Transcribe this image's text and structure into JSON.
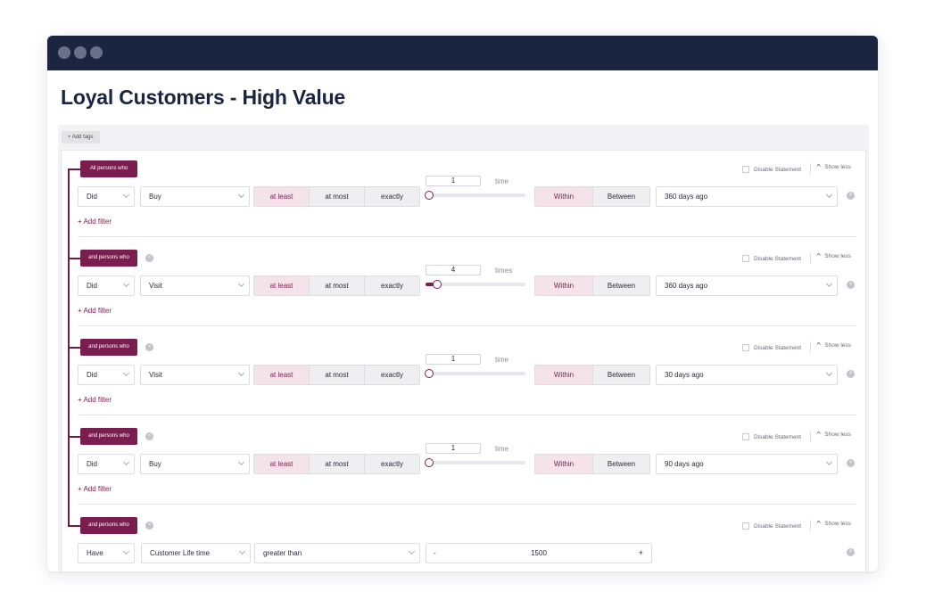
{
  "window": {
    "title": "Loyal Customers - High Value",
    "add_tags_label": "+ Add tags"
  },
  "colors": {
    "titlebar": "#1b2440",
    "accent": "#7a1d4f",
    "accent_light": "#f4e4ea"
  },
  "common": {
    "disable_label": "Disable Statement",
    "show_less_label": "Show less",
    "add_filter_label": "+ Add filter",
    "frequency_options": [
      "at least",
      "at most",
      "exactly"
    ],
    "range_options": [
      "Within",
      "Between"
    ],
    "active_frequency": "at least",
    "active_range": "Within"
  },
  "statements": [
    {
      "label": "All persons who",
      "verb": "Did",
      "action": "Buy",
      "count": "1",
      "unit": "time",
      "slider_value": 1,
      "slider_max": 10,
      "period": "360 days ago"
    },
    {
      "label": "and persons who",
      "verb": "Did",
      "action": "Visit",
      "count": "4",
      "unit": "times",
      "slider_value": 4,
      "slider_max": 40,
      "period": "360 days ago"
    },
    {
      "label": "and persons who",
      "verb": "Did",
      "action": "Visit",
      "count": "1",
      "unit": "time",
      "slider_value": 1,
      "slider_max": 10,
      "period": "30 days ago"
    },
    {
      "label": "and persons who",
      "verb": "Did",
      "action": "Buy",
      "count": "1",
      "unit": "time",
      "slider_value": 1,
      "slider_max": 10,
      "period": "90 days ago"
    },
    {
      "label": "and persons who",
      "verb": "Have",
      "attribute": "Customer Life time",
      "operator": "greater than",
      "value": "1500",
      "minus": "-",
      "plus": "+"
    }
  ],
  "icons": {
    "remove": "close-circle-icon",
    "collapse": "chevron-up-icon",
    "dropdown": "chevron-down-icon"
  }
}
